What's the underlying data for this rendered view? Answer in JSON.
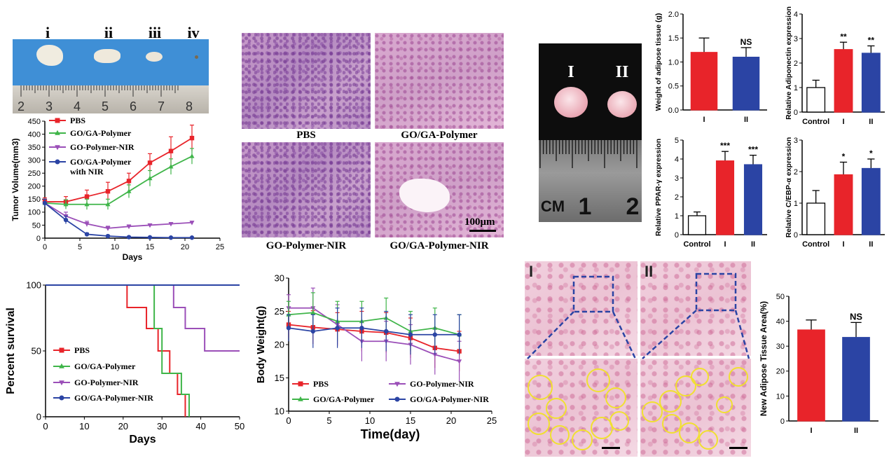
{
  "tumor_photo": {
    "labels": [
      "i",
      "ii",
      "iii",
      "iv"
    ],
    "ruler_numbers": [
      "2",
      "3",
      "4",
      "5",
      "6",
      "7",
      "8"
    ]
  },
  "histology": {
    "captions": [
      "PBS",
      "GO/GA-Polymer",
      "GO-Polymer-NIR",
      "GO/GA-Polymer-NIR"
    ],
    "scale_bar": "100μm"
  },
  "adipose_photo": {
    "labels": [
      "I",
      "II"
    ],
    "ruler_numbers": [
      "CM",
      "1",
      "2"
    ]
  },
  "adipose_stain": {
    "labels": [
      "I",
      "II"
    ]
  },
  "chart_data": [
    {
      "id": "tumor-volume",
      "type": "line",
      "xlabel": "Days",
      "ylabel": "Tumor Volume(mm3)",
      "xlim": [
        0,
        25
      ],
      "ylim": [
        0,
        450
      ],
      "xticks": [
        0,
        5,
        10,
        15,
        20,
        25
      ],
      "yticks": [
        0,
        50,
        100,
        150,
        200,
        250,
        300,
        350,
        400,
        450
      ],
      "x": [
        0,
        3,
        6,
        9,
        12,
        15,
        18,
        21
      ],
      "series": [
        {
          "name": "PBS",
          "color": "#e8242a",
          "marker": "square",
          "values": [
            140,
            140,
            160,
            180,
            220,
            290,
            335,
            385
          ],
          "errors": [
            15,
            20,
            25,
            35,
            30,
            35,
            55,
            50
          ]
        },
        {
          "name": "GO/GA-Polymer",
          "color": "#3fb549",
          "marker": "triangle-up",
          "values": [
            135,
            130,
            130,
            130,
            180,
            230,
            275,
            315
          ],
          "errors": [
            15,
            18,
            20,
            20,
            25,
            30,
            30,
            30
          ]
        },
        {
          "name": "GO-Polymer-NIR",
          "color": "#9b4fb8",
          "marker": "triangle-down",
          "values": [
            135,
            85,
            55,
            38,
            45,
            50,
            55,
            60
          ],
          "errors": [
            15,
            15,
            10,
            8,
            6,
            5,
            5,
            5
          ]
        },
        {
          "name": "GO/GA-Polymer\nwith NIR",
          "color": "#2b44a4",
          "marker": "circle",
          "values": [
            135,
            70,
            15,
            8,
            4,
            3,
            2,
            2
          ],
          "errors": [
            15,
            15,
            5,
            3,
            2,
            1,
            1,
            1
          ]
        }
      ]
    },
    {
      "id": "survival",
      "type": "line",
      "xlabel": "Days",
      "ylabel": "Percent survival",
      "xlim": [
        0,
        50
      ],
      "ylim": [
        0,
        100
      ],
      "xticks": [
        0,
        10,
        20,
        30,
        40,
        50
      ],
      "yticks": [
        0,
        50,
        100
      ],
      "series": [
        {
          "name": "PBS",
          "color": "#e8242a",
          "marker": "square",
          "steps": [
            [
              0,
              100
            ],
            [
              21,
              100
            ],
            [
              21,
              83
            ],
            [
              26,
              83
            ],
            [
              26,
              67
            ],
            [
              29,
              67
            ],
            [
              29,
              50
            ],
            [
              32,
              50
            ],
            [
              32,
              33
            ],
            [
              34,
              33
            ],
            [
              34,
              17
            ],
            [
              36,
              17
            ],
            [
              36,
              0
            ]
          ]
        },
        {
          "name": "GO/GA-Polymer",
          "color": "#3fb549",
          "marker": "triangle-up",
          "steps": [
            [
              0,
              100
            ],
            [
              28,
              100
            ],
            [
              28,
              67
            ],
            [
              30,
              67
            ],
            [
              30,
              33
            ],
            [
              35,
              33
            ],
            [
              35,
              17
            ],
            [
              37,
              17
            ],
            [
              37,
              0
            ]
          ]
        },
        {
          "name": "GO-Polymer-NIR",
          "color": "#9b4fb8",
          "marker": "triangle-down",
          "steps": [
            [
              0,
              100
            ],
            [
              33,
              100
            ],
            [
              33,
              83
            ],
            [
              36,
              83
            ],
            [
              36,
              67
            ],
            [
              41,
              67
            ],
            [
              41,
              50
            ],
            [
              50,
              50
            ]
          ]
        },
        {
          "name": "GO/GA-Polymer-NIR",
          "color": "#2b44a4",
          "marker": "circle",
          "steps": [
            [
              0,
              100
            ],
            [
              50,
              100
            ]
          ]
        }
      ]
    },
    {
      "id": "body-weight",
      "type": "line",
      "xlabel": "Time(day)",
      "ylabel": "Body Weight(g)",
      "xlim": [
        0,
        25
      ],
      "ylim": [
        10,
        30
      ],
      "xticks": [
        0,
        5,
        10,
        15,
        20,
        25
      ],
      "yticks": [
        10,
        15,
        20,
        25,
        30
      ],
      "x": [
        0,
        3,
        6,
        9,
        12,
        15,
        18,
        21
      ],
      "series": [
        {
          "name": "PBS",
          "color": "#e8242a",
          "marker": "square",
          "values": [
            23,
            22.6,
            22.3,
            22,
            21.8,
            21,
            19.5,
            19
          ],
          "errors": [
            2,
            2.5,
            2.5,
            3,
            3,
            3,
            3,
            3
          ]
        },
        {
          "name": "GO-Polymer-NIR",
          "color": "#9b4fb8",
          "marker": "triangle-down",
          "values": [
            25.5,
            25.5,
            23,
            20.5,
            20.5,
            20,
            18.5,
            17.5
          ],
          "errors": [
            2,
            3,
            3,
            3,
            3,
            3,
            3,
            3
          ]
        },
        {
          "name": "GO/GA-Polymer",
          "color": "#3fb549",
          "marker": "triangle-up",
          "values": [
            24.5,
            24.8,
            23.5,
            23.5,
            24,
            22,
            22.5,
            21.5
          ],
          "errors": [
            2,
            3,
            3,
            3,
            3,
            3,
            3,
            3
          ]
        },
        {
          "name": "GO/GA-Polymer-NIR",
          "color": "#2b44a4",
          "marker": "circle",
          "values": [
            22.5,
            22,
            22.5,
            22.5,
            22,
            21.5,
            21.5,
            21.5
          ],
          "errors": [
            2,
            2.5,
            3,
            3,
            3,
            3,
            3,
            3
          ]
        }
      ]
    },
    {
      "id": "adipose-weight",
      "type": "bar",
      "ylabel": "Weight of adipose tissue (g)",
      "categories": [
        "I",
        "II"
      ],
      "values": [
        1.2,
        1.1
      ],
      "errors": [
        0.3,
        0.2
      ],
      "colors": [
        "#e8242a",
        "#2b44a4"
      ],
      "ylim": [
        0,
        2.0
      ],
      "yticks": [
        0.0,
        0.5,
        1.0,
        1.5,
        2.0
      ],
      "annotations": [
        "",
        "NS"
      ]
    },
    {
      "id": "adiponectin",
      "type": "bar",
      "ylabel": "Relative Adiponectin expression",
      "categories": [
        "Control",
        "I",
        "II"
      ],
      "values": [
        1.0,
        2.55,
        2.4
      ],
      "errors": [
        0.3,
        0.3,
        0.3
      ],
      "colors": [
        "#ffffff",
        "#e8242a",
        "#2b44a4"
      ],
      "ylim": [
        0,
        4
      ],
      "yticks": [
        0,
        1,
        2,
        3,
        4
      ],
      "annotations": [
        "",
        "**",
        "**"
      ]
    },
    {
      "id": "ppar",
      "type": "bar",
      "ylabel": "Relative PPAR-γ expression",
      "categories": [
        "Control",
        "I",
        "II"
      ],
      "values": [
        1.0,
        3.9,
        3.7
      ],
      "errors": [
        0.2,
        0.5,
        0.5
      ],
      "colors": [
        "#ffffff",
        "#e8242a",
        "#2b44a4"
      ],
      "ylim": [
        0,
        5
      ],
      "yticks": [
        0,
        1,
        2,
        3,
        4,
        5
      ],
      "annotations": [
        "",
        "***",
        "***"
      ]
    },
    {
      "id": "cebp",
      "type": "bar",
      "ylabel": "Relative C/EBP-α expression",
      "categories": [
        "Control",
        "I",
        "II"
      ],
      "values": [
        1.0,
        1.9,
        2.1
      ],
      "errors": [
        0.4,
        0.4,
        0.3
      ],
      "colors": [
        "#ffffff",
        "#e8242a",
        "#2b44a4"
      ],
      "ylim": [
        0,
        3
      ],
      "yticks": [
        0,
        1,
        2,
        3
      ],
      "annotations": [
        "",
        "*",
        "*"
      ]
    },
    {
      "id": "new-adipose",
      "type": "bar",
      "ylabel": "New Adipose Tissue Area(%)",
      "categories": [
        "I",
        "II"
      ],
      "values": [
        36.5,
        33.5
      ],
      "errors": [
        4,
        6
      ],
      "colors": [
        "#e8242a",
        "#2b44a4"
      ],
      "ylim": [
        0,
        50
      ],
      "yticks": [
        0,
        10,
        20,
        30,
        40,
        50
      ],
      "annotations": [
        "",
        "NS"
      ]
    }
  ]
}
